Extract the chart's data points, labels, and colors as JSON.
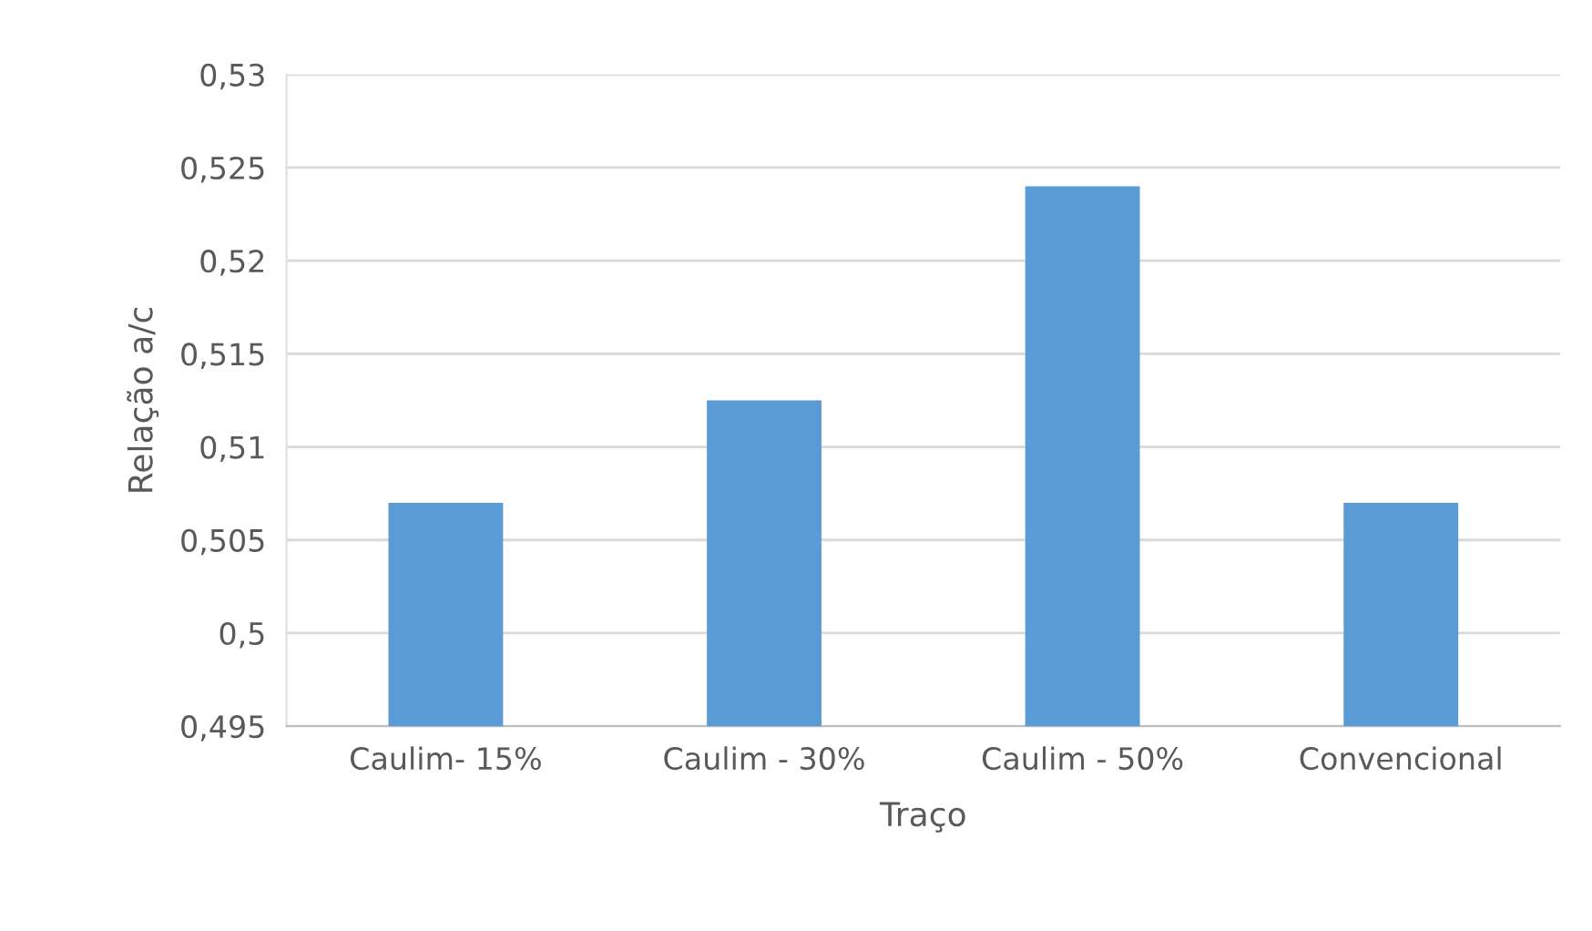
{
  "chart_data": {
    "type": "bar",
    "xlabel": "Traço",
    "ylabel": "Relação a/c",
    "categories": [
      "Caulim- 15%",
      "Caulim - 30%",
      "Caulim - 50%",
      "Convencional"
    ],
    "values": [
      0.507,
      0.5125,
      0.524,
      0.507
    ],
    "color": "#5b9bd5",
    "ylim": [
      0.495,
      0.53
    ],
    "yticks": [
      {
        "value": 0.495,
        "label": "0,495"
      },
      {
        "value": 0.5,
        "label": "0,5"
      },
      {
        "value": 0.505,
        "label": "0,505"
      },
      {
        "value": 0.51,
        "label": "0,51"
      },
      {
        "value": 0.515,
        "label": "0,515"
      },
      {
        "value": 0.52,
        "label": "0,52"
      },
      {
        "value": 0.525,
        "label": "0,525"
      },
      {
        "value": 0.53,
        "label": "0,53"
      }
    ],
    "grid": "y",
    "legend": false
  }
}
